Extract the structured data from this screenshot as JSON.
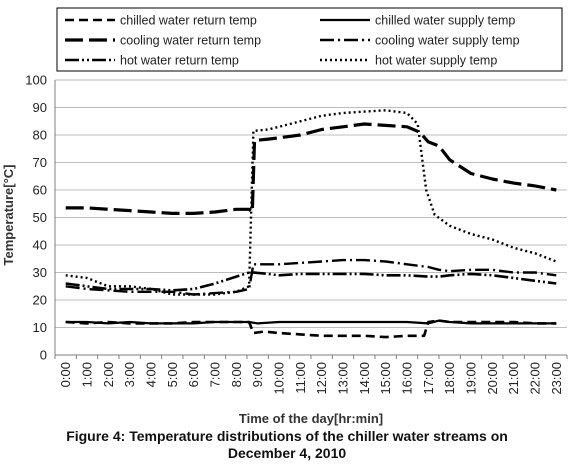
{
  "chart_data": {
    "type": "line",
    "title": "",
    "xlabel": "Time of the day[hr:min]",
    "ylabel": "Temperature[°C]",
    "ylim": [
      0,
      100
    ],
    "yticks": [
      0,
      10,
      20,
      30,
      40,
      50,
      60,
      70,
      80,
      90,
      100
    ],
    "grid": "horizontal",
    "legend_position": "top",
    "x": [
      "0:00",
      "1:00",
      "2:00",
      "3:00",
      "4:00",
      "5:00",
      "6:00",
      "7:00",
      "8:00",
      "9:00",
      "10:00",
      "11:00",
      "12:00",
      "13:00",
      "14:00",
      "15:00",
      "16:00",
      "17:00",
      "18:00",
      "19:00",
      "20:00",
      "21:00",
      "22:00",
      "23:00"
    ],
    "series": [
      {
        "name": "chilled water return temp",
        "style": "dash",
        "points": [
          [
            0,
            12
          ],
          [
            1,
            11.5
          ],
          [
            2,
            12
          ],
          [
            3,
            11.5
          ],
          [
            4,
            11.5
          ],
          [
            5,
            11.5
          ],
          [
            6,
            12
          ],
          [
            7,
            12
          ],
          [
            8,
            12
          ],
          [
            8.6,
            12
          ],
          [
            8.8,
            8
          ],
          [
            9.3,
            8.5
          ],
          [
            10,
            8
          ],
          [
            11,
            7.5
          ],
          [
            12,
            7
          ],
          [
            13,
            7
          ],
          [
            14,
            7
          ],
          [
            15,
            6.5
          ],
          [
            16,
            7
          ],
          [
            16.8,
            7
          ],
          [
            17,
            12
          ],
          [
            17.5,
            12.5
          ],
          [
            18,
            12
          ],
          [
            19,
            12
          ],
          [
            20,
            12
          ],
          [
            21,
            12
          ],
          [
            22,
            11.5
          ],
          [
            23,
            11.5
          ]
        ]
      },
      {
        "name": "chilled water supply temp",
        "style": "solid",
        "points": [
          [
            0,
            12
          ],
          [
            1,
            12
          ],
          [
            2,
            11.5
          ],
          [
            3,
            12
          ],
          [
            4,
            11.5
          ],
          [
            5,
            11.5
          ],
          [
            6,
            11.5
          ],
          [
            7,
            12
          ],
          [
            8,
            12
          ],
          [
            8.6,
            12
          ],
          [
            9,
            11.5
          ],
          [
            10,
            12
          ],
          [
            11,
            12
          ],
          [
            12,
            12
          ],
          [
            13,
            12
          ],
          [
            14,
            12
          ],
          [
            15,
            12
          ],
          [
            16,
            12
          ],
          [
            17,
            11.5
          ],
          [
            17.5,
            12.5
          ],
          [
            18,
            12
          ],
          [
            19,
            11.5
          ],
          [
            20,
            11.5
          ],
          [
            21,
            11.5
          ],
          [
            22,
            11.5
          ],
          [
            23,
            11.5
          ]
        ]
      },
      {
        "name": "cooling water return temp",
        "style": "longdash",
        "points": [
          [
            0,
            53.5
          ],
          [
            1,
            53.5
          ],
          [
            2,
            53
          ],
          [
            3,
            52.5
          ],
          [
            4,
            52
          ],
          [
            5,
            51.5
          ],
          [
            6,
            51.5
          ],
          [
            7,
            52
          ],
          [
            8,
            53
          ],
          [
            8.6,
            53
          ],
          [
            8.75,
            52
          ],
          [
            8.85,
            78
          ],
          [
            9.5,
            78.5
          ],
          [
            10,
            79
          ],
          [
            11,
            80
          ],
          [
            12,
            82
          ],
          [
            13,
            83
          ],
          [
            14,
            84
          ],
          [
            15,
            83.5
          ],
          [
            16,
            83
          ],
          [
            16.6,
            81
          ],
          [
            17,
            77.5
          ],
          [
            17.5,
            76
          ],
          [
            18,
            71
          ],
          [
            19,
            66
          ],
          [
            20,
            64
          ],
          [
            21,
            62.5
          ],
          [
            22,
            61.5
          ],
          [
            23,
            60
          ]
        ]
      },
      {
        "name": "cooling water supply temp",
        "style": "dashdot",
        "points": [
          [
            0,
            25
          ],
          [
            1,
            24
          ],
          [
            2,
            23.5
          ],
          [
            3,
            23
          ],
          [
            4,
            23
          ],
          [
            5,
            23
          ],
          [
            6,
            22
          ],
          [
            7,
            22.5
          ],
          [
            8,
            23
          ],
          [
            8.6,
            24
          ],
          [
            8.8,
            33
          ],
          [
            9.5,
            33
          ],
          [
            10,
            33
          ],
          [
            11,
            33.5
          ],
          [
            12,
            34
          ],
          [
            13,
            34.5
          ],
          [
            14,
            34.5
          ],
          [
            15,
            34
          ],
          [
            16,
            33
          ],
          [
            17,
            32
          ],
          [
            17.5,
            31
          ],
          [
            18,
            30.5
          ],
          [
            19,
            31
          ],
          [
            20,
            31
          ],
          [
            21,
            30
          ],
          [
            22,
            30
          ],
          [
            23,
            29
          ]
        ]
      },
      {
        "name": "hot water return temp",
        "style": "dashdotdot",
        "points": [
          [
            0,
            26
          ],
          [
            1,
            25
          ],
          [
            2,
            24
          ],
          [
            3,
            24
          ],
          [
            4,
            24
          ],
          [
            5,
            23.5
          ],
          [
            6,
            24
          ],
          [
            7,
            26
          ],
          [
            8,
            28.5
          ],
          [
            8.6,
            30
          ],
          [
            8.8,
            30
          ],
          [
            9.5,
            29.5
          ],
          [
            10,
            29
          ],
          [
            11,
            29.5
          ],
          [
            12,
            29.5
          ],
          [
            13,
            29.5
          ],
          [
            14,
            29.5
          ],
          [
            15,
            29
          ],
          [
            16,
            29
          ],
          [
            17,
            28.5
          ],
          [
            17.5,
            28.5
          ],
          [
            18,
            29
          ],
          [
            19,
            29.5
          ],
          [
            20,
            29
          ],
          [
            21,
            28
          ],
          [
            22,
            27
          ],
          [
            23,
            26
          ]
        ]
      },
      {
        "name": "hot water supply temp",
        "style": "dot",
        "points": [
          [
            0,
            29
          ],
          [
            1,
            28
          ],
          [
            2,
            25
          ],
          [
            3,
            25
          ],
          [
            4,
            24
          ],
          [
            5,
            22
          ],
          [
            6,
            22
          ],
          [
            7,
            22
          ],
          [
            8,
            23
          ],
          [
            8.6,
            25
          ],
          [
            8.8,
            81.5
          ],
          [
            9.5,
            82
          ],
          [
            10,
            83
          ],
          [
            11,
            85
          ],
          [
            12,
            87
          ],
          [
            13,
            88
          ],
          [
            14,
            88.5
          ],
          [
            15,
            89
          ],
          [
            16,
            88
          ],
          [
            16.5,
            84
          ],
          [
            16.9,
            60
          ],
          [
            17.3,
            51
          ],
          [
            18,
            47
          ],
          [
            19,
            44
          ],
          [
            20,
            42
          ],
          [
            21,
            39
          ],
          [
            22,
            37
          ],
          [
            23,
            34
          ]
        ]
      }
    ]
  },
  "caption": {
    "line1": "Figure 4: Temperature distributions of the chiller water streams on",
    "line2": "December 4, 2010"
  }
}
